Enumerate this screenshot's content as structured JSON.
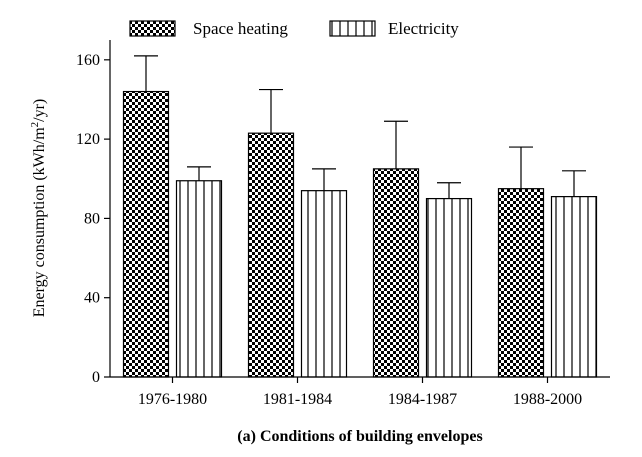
{
  "chart_data": {
    "type": "bar",
    "title": "(a) Conditions of building envelopes",
    "xlabel": "",
    "ylabel_main": "Energy consumption (kWh/m",
    "ylabel_sup": "2",
    "ylabel_tail": "/yr)",
    "categories": [
      "1976-1980",
      "1981-1984",
      "1984-1987",
      "1988-2000"
    ],
    "series": [
      {
        "name": "Space heating",
        "pattern": "checker",
        "values": [
          144,
          123,
          105,
          95
        ],
        "error": [
          18,
          22,
          24,
          21
        ]
      },
      {
        "name": "Electricity",
        "pattern": "vertical-stripes",
        "values": [
          99,
          94,
          90,
          91
        ],
        "error": [
          7,
          11,
          8,
          13
        ]
      }
    ],
    "ylim": [
      0,
      170
    ],
    "yticks": [
      0,
      40,
      80,
      120,
      160
    ],
    "grid": false,
    "legend_position": "top",
    "colors": {
      "fill": "#ffffff",
      "ink": "#000000"
    }
  }
}
